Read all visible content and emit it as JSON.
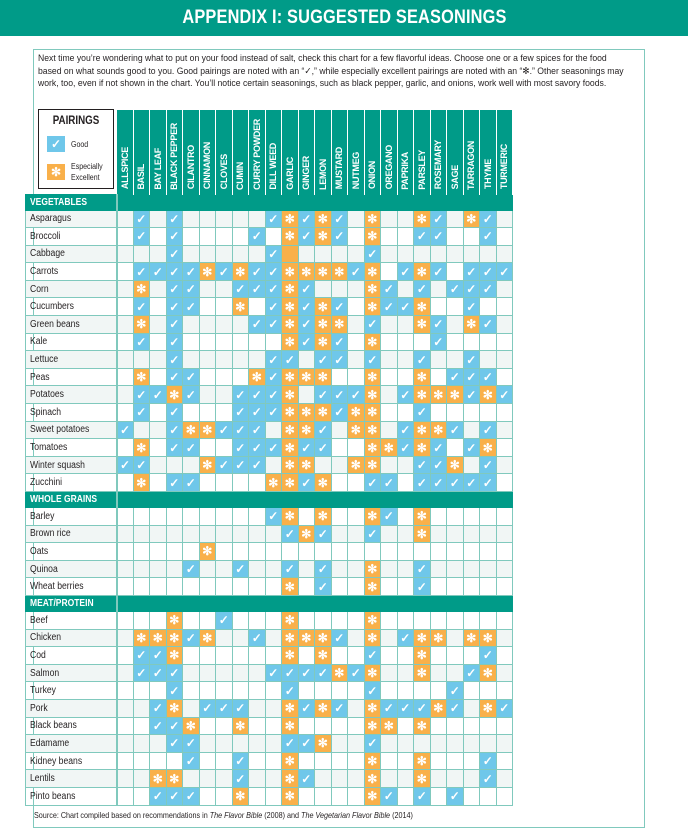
{
  "title": "APPENDIX I: SUGGESTED SEASONINGS",
  "intro": "Next time you’re wondering what to put on your food instead of salt, check this chart for a few flavorful ideas. Choose one or a few spices for the food based on what sounds good to you. Good pairings are noted with an “✓,” while especially excellent pairings are noted with an “✻.” Other seasonings may work, too, even if not shown in the chart. You’ll notice certain seasonings, such as black pepper, garlic, and onions, work well with most savory foods.",
  "legend": {
    "title": "PAIRINGS",
    "good_label": "Good",
    "excellent_label_1": "Especially",
    "excellent_label_2": "Excellent",
    "good_icon": "check-icon",
    "excellent_icon": "asterisk-icon",
    "good_color": "#6fc7ea",
    "excellent_color": "#f9b04a"
  },
  "colors": {
    "brand": "#009b88",
    "grid_line": "#80c9bd",
    "good": "#6fc7ea",
    "excellent": "#f9b04a"
  },
  "source": {
    "prefix": "Source: Chart compiled based on recommendations in ",
    "book1": "The Flavor Bible",
    "mid": " (2008) and ",
    "book2": "The Vegetarian Flavor Bible",
    "suffix": " (2014)"
  },
  "chart_data": {
    "type": "table",
    "title": "APPENDIX I: SUGGESTED SEASONINGS",
    "legend": {
      "G": "Good",
      "E": "Especially Excellent",
      "": "No pairing"
    },
    "columns": [
      "ALLSPICE",
      "BASIL",
      "BAY LEAF",
      "BLACK PEPPER",
      "CILANTRO",
      "CINNAMON",
      "CLOVES",
      "CUMIN",
      "CURRY POWDER",
      "DILL WEED",
      "GARLIC",
      "GINGER",
      "LEMON",
      "MUSTARD",
      "NUTMEG",
      "ONION",
      "OREGANO",
      "PAPRIKA",
      "PARSLEY",
      "ROSEMARY",
      "SAGE",
      "TARRAGON",
      "THYME",
      "TURMERIC"
    ],
    "sections": [
      {
        "name": "VEGETABLES",
        "rows": [
          {
            "food": "Asparagus",
            "cells": [
              "",
              "G",
              "",
              "G",
              "",
              "",
              "",
              "",
              "",
              "G",
              "E",
              "G",
              "E",
              "G",
              "",
              "E",
              "",
              "",
              "E",
              "G",
              "",
              "E",
              "G",
              ""
            ]
          },
          {
            "food": "Broccoli",
            "cells": [
              "",
              "G",
              "",
              "G",
              "",
              "",
              "",
              "",
              "G",
              "",
              "E",
              "G",
              "E",
              "G",
              "",
              "E",
              "",
              "",
              "G",
              "G",
              "",
              "",
              "G",
              ""
            ]
          },
          {
            "food": "Cabbage",
            "cells": [
              "",
              "",
              "",
              "G",
              "",
              "",
              "",
              "",
              "",
              "G",
              "E*",
              "",
              "",
              "",
              "",
              "G",
              "",
              "",
              "",
              "",
              "",
              "",
              "",
              ""
            ]
          },
          {
            "food": "Carrots",
            "cells": [
              "",
              "G",
              "G",
              "G",
              "G",
              "E",
              "G",
              "E",
              "G",
              "G",
              "E",
              "E",
              "E",
              "E",
              "G",
              "E",
              "",
              "G",
              "E",
              "G",
              "",
              "G",
              "G",
              "G"
            ]
          },
          {
            "food": "Corn",
            "cells": [
              "",
              "E",
              "",
              "G",
              "G",
              "",
              "",
              "G",
              "G",
              "G",
              "E",
              "G",
              "",
              "",
              "",
              "E",
              "G",
              "",
              "G",
              "",
              "G",
              "G",
              "G",
              ""
            ]
          },
          {
            "food": "Cucumbers",
            "cells": [
              "",
              "G",
              "",
              "G",
              "G",
              "",
              "",
              "E",
              "",
              "G",
              "E",
              "G",
              "E",
              "G",
              "",
              "E",
              "G",
              "G",
              "E",
              "",
              "",
              "G",
              "",
              ""
            ]
          },
          {
            "food": "Green beans",
            "cells": [
              "",
              "E",
              "",
              "G",
              "",
              "",
              "",
              "",
              "G",
              "G",
              "E",
              "G",
              "E",
              "E",
              "",
              "G",
              "",
              "",
              "E",
              "G",
              "",
              "E",
              "G",
              ""
            ]
          },
          {
            "food": "Kale",
            "cells": [
              "",
              "G",
              "",
              "G",
              "",
              "",
              "",
              "",
              "",
              "",
              "E",
              "G",
              "E",
              "G",
              "",
              "E",
              "",
              "",
              "",
              "G",
              "",
              "",
              "",
              ""
            ]
          },
          {
            "food": "Lettuce",
            "cells": [
              "",
              "",
              "",
              "G",
              "",
              "",
              "",
              "",
              "",
              "G",
              "G",
              "",
              "G",
              "G",
              "",
              "G",
              "",
              "",
              "G",
              "",
              "",
              "G",
              "",
              ""
            ]
          },
          {
            "food": "Peas",
            "cells": [
              "",
              "E",
              "",
              "G",
              "G",
              "",
              "",
              "",
              "E",
              "G",
              "E",
              "E",
              "E",
              "",
              "",
              "E",
              "",
              "",
              "E",
              "",
              "G",
              "G",
              "G",
              ""
            ]
          },
          {
            "food": "Potatoes",
            "cells": [
              "",
              "G",
              "G",
              "E",
              "G",
              "",
              "",
              "G",
              "G",
              "G",
              "E",
              "",
              "G",
              "G",
              "G",
              "E",
              "",
              "G",
              "E",
              "E",
              "E",
              "G",
              "E",
              "G"
            ]
          },
          {
            "food": "Spinach",
            "cells": [
              "",
              "G",
              "",
              "G",
              "",
              "",
              "",
              "G",
              "G",
              "G",
              "E",
              "E",
              "E",
              "G",
              "E",
              "E",
              "",
              "",
              "G",
              "",
              "",
              "",
              "",
              ""
            ]
          },
          {
            "food": "Sweet potatoes",
            "cells": [
              "G",
              "",
              "",
              "G",
              "E",
              "E",
              "G",
              "G",
              "G",
              "",
              "E",
              "E",
              "G",
              "",
              "E",
              "E",
              "",
              "G",
              "E",
              "E",
              "G",
              "",
              "G",
              ""
            ]
          },
          {
            "food": "Tomatoes",
            "cells": [
              "",
              "E",
              "",
              "G",
              "G",
              "",
              "",
              "G",
              "G",
              "G",
              "E",
              "G",
              "G",
              "",
              "",
              "E",
              "E",
              "G",
              "E",
              "G",
              "",
              "G",
              "E",
              ""
            ]
          },
          {
            "food": "Winter squash",
            "cells": [
              "G",
              "G",
              "",
              "",
              "",
              "E",
              "G",
              "G",
              "G",
              "",
              "E",
              "E",
              "",
              "",
              "E",
              "E",
              "",
              "",
              "G",
              "G",
              "E",
              "",
              "G",
              ""
            ]
          },
          {
            "food": "Zucchini",
            "cells": [
              "",
              "E",
              "",
              "G",
              "G",
              "",
              "",
              "",
              "",
              "E",
              "E",
              "G",
              "E",
              "",
              "",
              "G",
              "G",
              "",
              "G",
              "G",
              "G",
              "G",
              "G",
              ""
            ]
          }
        ]
      },
      {
        "name": "WHOLE GRAINS",
        "rows": [
          {
            "food": "Barley",
            "cells": [
              "",
              "",
              "",
              "",
              "",
              "",
              "",
              "",
              "",
              "G",
              "E",
              "",
              "E",
              "",
              "",
              "E",
              "G",
              "",
              "E",
              "",
              "",
              "",
              "",
              ""
            ]
          },
          {
            "food": "Brown rice",
            "cells": [
              "",
              "",
              "",
              "",
              "",
              "",
              "",
              "",
              "",
              "",
              "G",
              "E",
              "G",
              "",
              "",
              "G",
              "",
              "",
              "E",
              "",
              "",
              "",
              "",
              ""
            ]
          },
          {
            "food": "Oats",
            "cells": [
              "",
              "",
              "",
              "",
              "",
              "E",
              "",
              "",
              "",
              "",
              "",
              "",
              "",
              "",
              "",
              "",
              "",
              "",
              "",
              "",
              "",
              "",
              "",
              ""
            ]
          },
          {
            "food": "Quinoa",
            "cells": [
              "",
              "",
              "",
              "",
              "G",
              "",
              "",
              "G",
              "",
              "",
              "G",
              "",
              "G",
              "",
              "",
              "E",
              "",
              "",
              "G",
              "",
              "",
              "",
              "",
              ""
            ]
          },
          {
            "food": "Wheat berries",
            "cells": [
              "",
              "",
              "",
              "",
              "",
              "",
              "",
              "",
              "",
              "",
              "E",
              "",
              "G",
              "",
              "",
              "E",
              "",
              "",
              "G",
              "",
              "",
              "",
              "",
              ""
            ]
          }
        ]
      },
      {
        "name": "MEAT/PROTEIN",
        "rows": [
          {
            "food": "Beef",
            "cells": [
              "",
              "",
              "",
              "E",
              "",
              "",
              "G",
              "",
              "",
              "",
              "E",
              "",
              "",
              "",
              "",
              "E",
              "",
              "",
              "",
              "",
              "",
              "",
              "",
              ""
            ]
          },
          {
            "food": "Chicken",
            "cells": [
              "",
              "E",
              "E",
              "E",
              "G",
              "E",
              "",
              "",
              "G",
              "",
              "E",
              "E",
              "E",
              "G",
              "",
              "E",
              "",
              "G",
              "E",
              "E",
              "",
              "E",
              "E",
              ""
            ]
          },
          {
            "food": "Cod",
            "cells": [
              "",
              "G",
              "G",
              "E",
              "",
              "",
              "",
              "",
              "",
              "",
              "E",
              "",
              "E",
              "",
              "",
              "G",
              "",
              "",
              "E",
              "",
              "",
              "",
              "G",
              ""
            ]
          },
          {
            "food": "Salmon",
            "cells": [
              "",
              "G",
              "G",
              "G",
              "",
              "",
              "",
              "",
              "",
              "G",
              "G",
              "G",
              "G",
              "E",
              "G",
              "E",
              "",
              "",
              "E",
              "",
              "",
              "G",
              "E",
              ""
            ]
          },
          {
            "food": "Turkey",
            "cells": [
              "",
              "",
              "",
              "G",
              "",
              "",
              "",
              "",
              "",
              "",
              "G",
              "",
              "",
              "",
              "",
              "G",
              "",
              "",
              "",
              "",
              "G",
              "",
              "",
              ""
            ]
          },
          {
            "food": "Pork",
            "cells": [
              "",
              "",
              "G",
              "E",
              "",
              "G",
              "G",
              "G",
              "",
              "",
              "E",
              "G",
              "E",
              "G",
              "",
              "E",
              "G",
              "G",
              "G",
              "E",
              "G",
              "",
              "E",
              "G"
            ]
          },
          {
            "food": "Black beans",
            "cells": [
              "",
              "",
              "G",
              "G",
              "E",
              "",
              "",
              "E",
              "",
              "",
              "E",
              "",
              "",
              "",
              "",
              "E",
              "E",
              "",
              "E",
              "",
              "",
              "",
              "",
              ""
            ]
          },
          {
            "food": "Edamame",
            "cells": [
              "",
              "",
              "",
              "G",
              "G",
              "",
              "",
              "",
              "",
              "",
              "G",
              "G",
              "E",
              "",
              "",
              "G",
              "",
              "",
              "",
              "",
              "",
              "",
              "",
              ""
            ]
          },
          {
            "food": "Kidney beans",
            "cells": [
              "",
              "",
              "",
              "",
              "G",
              "",
              "",
              "G",
              "",
              "",
              "E",
              "",
              "",
              "",
              "",
              "E",
              "",
              "",
              "E",
              "",
              "",
              "",
              "G",
              ""
            ]
          },
          {
            "food": "Lentils",
            "cells": [
              "",
              "",
              "E",
              "E",
              "",
              "",
              "",
              "G",
              "",
              "",
              "E",
              "G",
              "",
              "",
              "",
              "E",
              "",
              "",
              "E",
              "",
              "",
              "",
              "G",
              ""
            ]
          },
          {
            "food": "Pinto beans",
            "cells": [
              "",
              "",
              "G",
              "G",
              "G",
              "",
              "",
              "E",
              "",
              "",
              "E",
              "",
              "",
              "",
              "",
              "E",
              "G",
              "",
              "G",
              "",
              "G",
              "",
              "",
              ""
            ]
          }
        ]
      }
    ]
  }
}
